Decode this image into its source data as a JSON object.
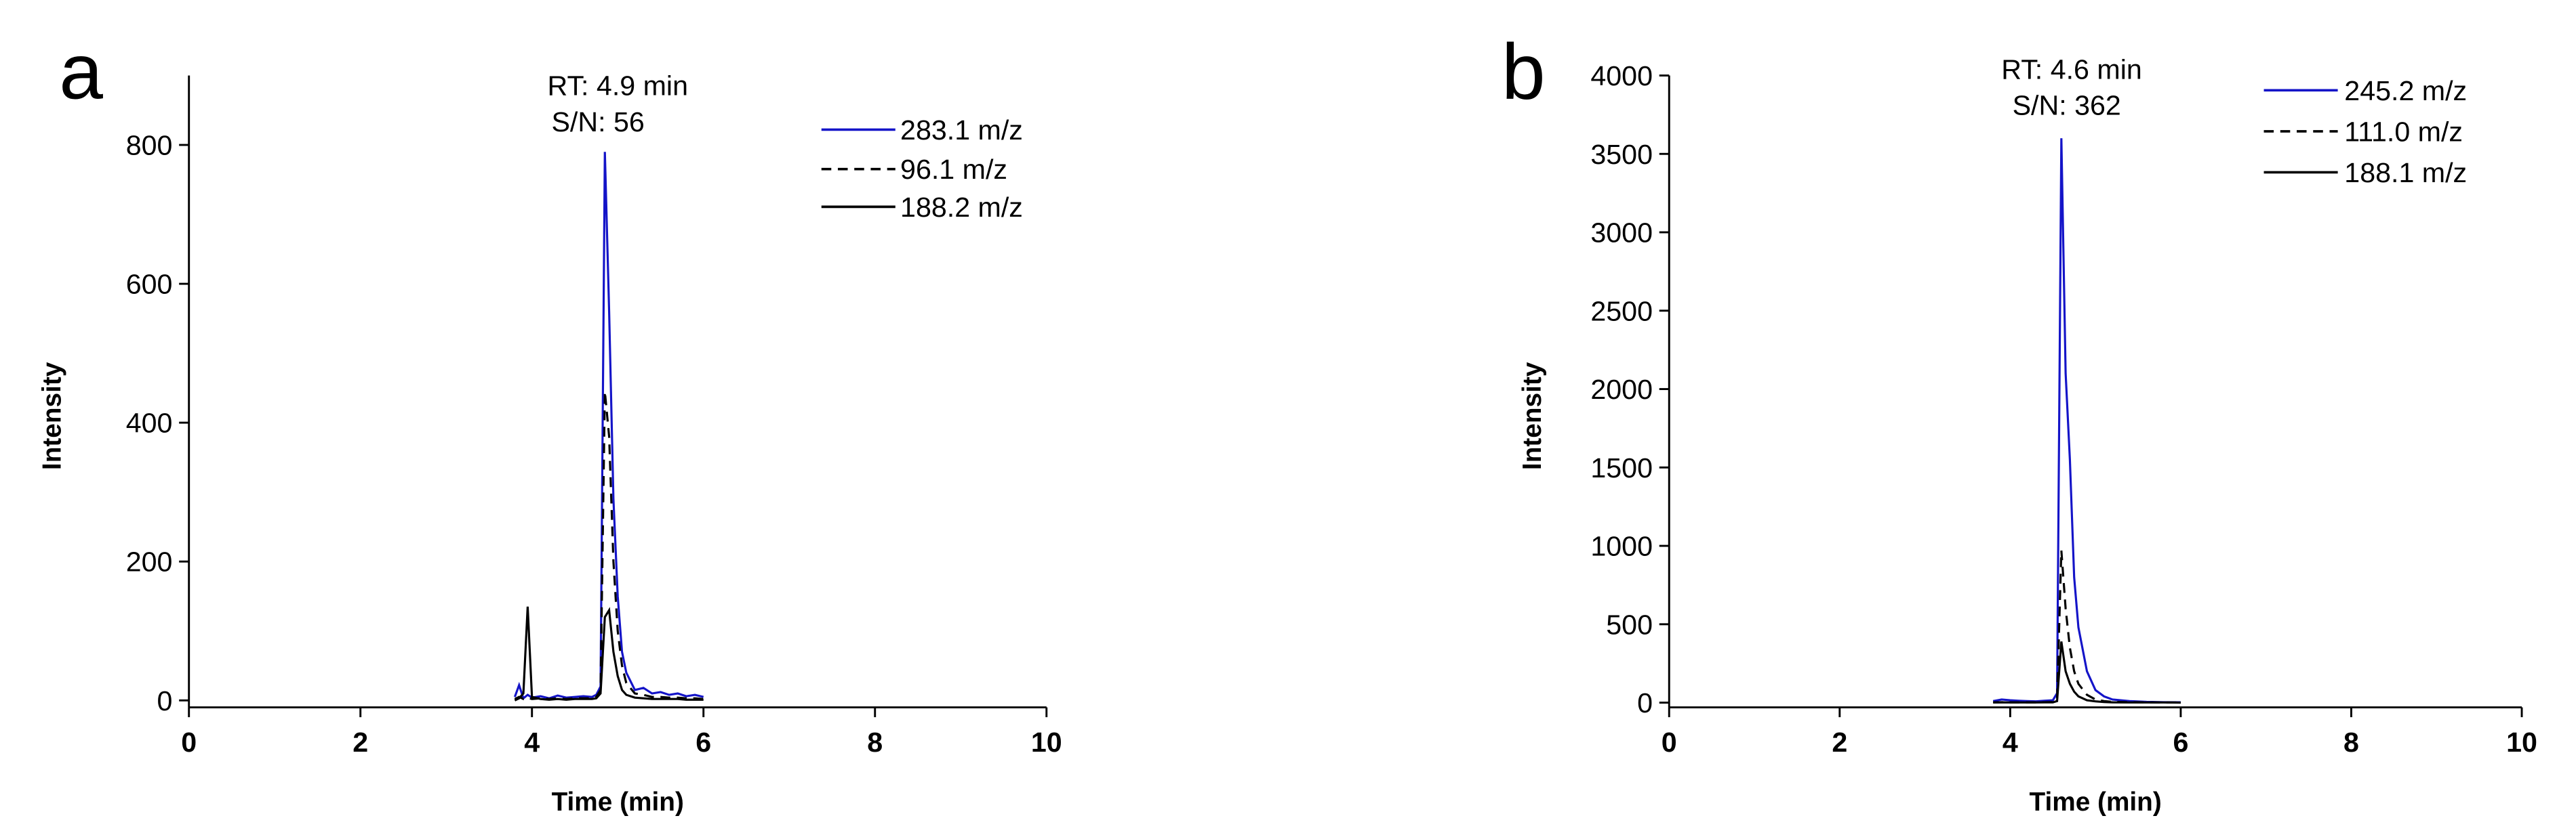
{
  "chart_data": [
    {
      "type": "line",
      "panel_label": "a",
      "xlabel": "Time (min)",
      "ylabel": "Intensity",
      "annotations": [
        "RT: 4.9 min",
        "S/N: 56"
      ],
      "xlim": [
        0,
        10
      ],
      "xticks": [
        0,
        2,
        4,
        6,
        8,
        10
      ],
      "ylim": [
        -10,
        900
      ],
      "yticks": [
        0,
        200,
        400,
        600,
        800
      ],
      "x": [
        3.8,
        3.85,
        3.9,
        3.95,
        4.0,
        4.1,
        4.2,
        4.3,
        4.4,
        4.5,
        4.6,
        4.7,
        4.75,
        4.8,
        4.85,
        4.9,
        4.95,
        5.0,
        5.05,
        5.1,
        5.2,
        5.3,
        5.4,
        5.5,
        5.6,
        5.7,
        5.8,
        5.9,
        6.0
      ],
      "series": [
        {
          "name": "283.1 m/z",
          "color": "#1414c8",
          "linestyle": "solid",
          "values": [
            5,
            22,
            3,
            8,
            4,
            6,
            3,
            7,
            4,
            5,
            6,
            5,
            8,
            20,
            790,
            560,
            290,
            150,
            70,
            40,
            15,
            18,
            10,
            12,
            8,
            10,
            6,
            8,
            5
          ]
        },
        {
          "name": "96.1 m/z",
          "color": "#000000",
          "linestyle": "dashed",
          "values": [
            2,
            5,
            2,
            4,
            2,
            3,
            2,
            3,
            2,
            3,
            3,
            3,
            5,
            15,
            445,
            380,
            200,
            100,
            50,
            25,
            10,
            8,
            5,
            5,
            4,
            4,
            3,
            3,
            2
          ]
        },
        {
          "name": "188.2 m/z",
          "color": "#000000",
          "linestyle": "solid",
          "values": [
            0,
            3,
            10,
            135,
            5,
            2,
            1,
            2,
            1,
            2,
            2,
            2,
            3,
            10,
            120,
            130,
            70,
            35,
            15,
            8,
            4,
            3,
            2,
            2,
            2,
            2,
            1,
            1,
            1
          ]
        }
      ]
    },
    {
      "type": "line",
      "panel_label": "b",
      "xlabel": "Time (min)",
      "ylabel": "Intensity",
      "annotations": [
        "RT: 4.6 min",
        "S/N: 362"
      ],
      "xlim": [
        0,
        10
      ],
      "xticks": [
        0,
        2,
        4,
        6,
        8,
        10
      ],
      "ylim": [
        -30,
        4000
      ],
      "yticks": [
        0,
        500,
        1000,
        1500,
        2000,
        2500,
        3000,
        3500,
        4000
      ],
      "x": [
        3.8,
        3.9,
        4.0,
        4.1,
        4.2,
        4.3,
        4.4,
        4.5,
        4.55,
        4.6,
        4.65,
        4.7,
        4.75,
        4.8,
        4.9,
        5.0,
        5.1,
        5.2,
        5.4,
        5.6,
        5.8,
        6.0
      ],
      "series": [
        {
          "name": "245.2 m/z",
          "color": "#1414c8",
          "linestyle": "solid",
          "values": [
            10,
            20,
            15,
            12,
            10,
            8,
            12,
            15,
            60,
            3600,
            2100,
            1550,
            800,
            480,
            200,
            80,
            40,
            20,
            10,
            5,
            3,
            2
          ]
        },
        {
          "name": "111.0 m/z",
          "color": "#000000",
          "linestyle": "dashed",
          "values": [
            2,
            3,
            2,
            2,
            2,
            2,
            3,
            4,
            20,
            970,
            600,
            350,
            200,
            120,
            50,
            20,
            10,
            5,
            3,
            2,
            1,
            1
          ]
        },
        {
          "name": "188.1 m/z",
          "color": "#000000",
          "linestyle": "solid",
          "values": [
            1,
            2,
            1,
            1,
            1,
            1,
            2,
            2,
            10,
            390,
            200,
            120,
            70,
            40,
            15,
            8,
            4,
            2,
            1,
            1,
            1,
            0
          ]
        }
      ]
    }
  ]
}
